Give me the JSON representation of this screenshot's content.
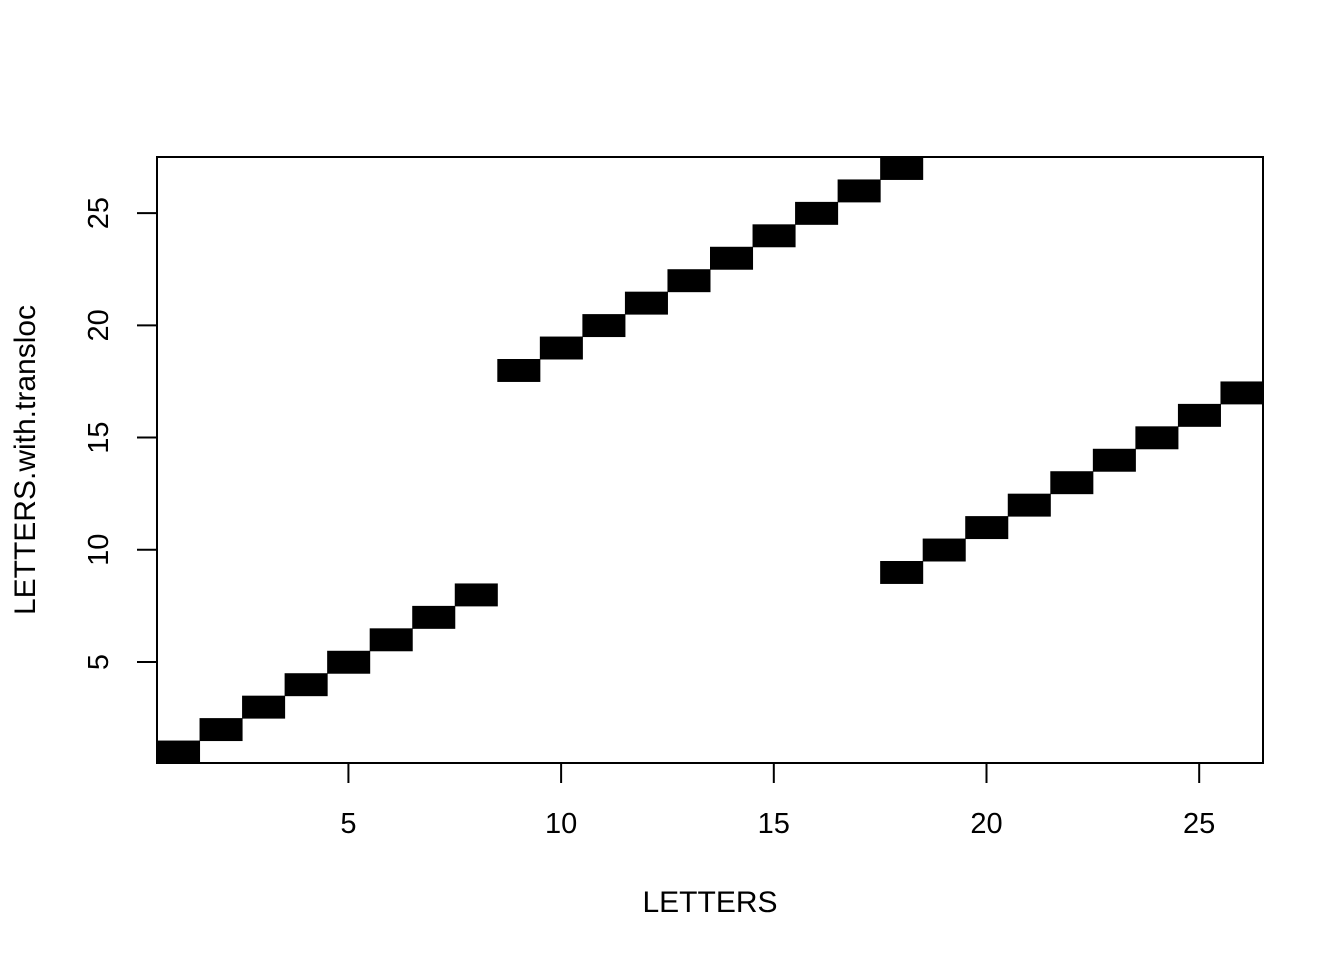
{
  "chart_data": {
    "type": "heatmap",
    "title": "",
    "xlabel": "LETTERS",
    "ylabel": "LETTERS.with.transloc",
    "xlim": [
      0.5,
      26.5
    ],
    "ylim": [
      0.5,
      27.5
    ],
    "x_ticks": [
      5,
      10,
      15,
      20,
      25
    ],
    "y_ticks": [
      5,
      10,
      15,
      20,
      25
    ],
    "grid": false,
    "legend": "none",
    "cell_color": "#000000",
    "cells": [
      {
        "x": 1,
        "y": 1
      },
      {
        "x": 2,
        "y": 2
      },
      {
        "x": 3,
        "y": 3
      },
      {
        "x": 4,
        "y": 4
      },
      {
        "x": 5,
        "y": 5
      },
      {
        "x": 6,
        "y": 6
      },
      {
        "x": 7,
        "y": 7
      },
      {
        "x": 8,
        "y": 8
      },
      {
        "x": 9,
        "y": 18
      },
      {
        "x": 10,
        "y": 19
      },
      {
        "x": 11,
        "y": 20
      },
      {
        "x": 12,
        "y": 21
      },
      {
        "x": 13,
        "y": 22
      },
      {
        "x": 14,
        "y": 23
      },
      {
        "x": 15,
        "y": 24
      },
      {
        "x": 16,
        "y": 25
      },
      {
        "x": 17,
        "y": 26
      },
      {
        "x": 18,
        "y": 27
      },
      {
        "x": 18,
        "y": 9
      },
      {
        "x": 19,
        "y": 10
      },
      {
        "x": 20,
        "y": 11
      },
      {
        "x": 21,
        "y": 12
      },
      {
        "x": 22,
        "y": 13
      },
      {
        "x": 23,
        "y": 14
      },
      {
        "x": 24,
        "y": 15
      },
      {
        "x": 25,
        "y": 16
      },
      {
        "x": 26,
        "y": 17
      }
    ]
  }
}
